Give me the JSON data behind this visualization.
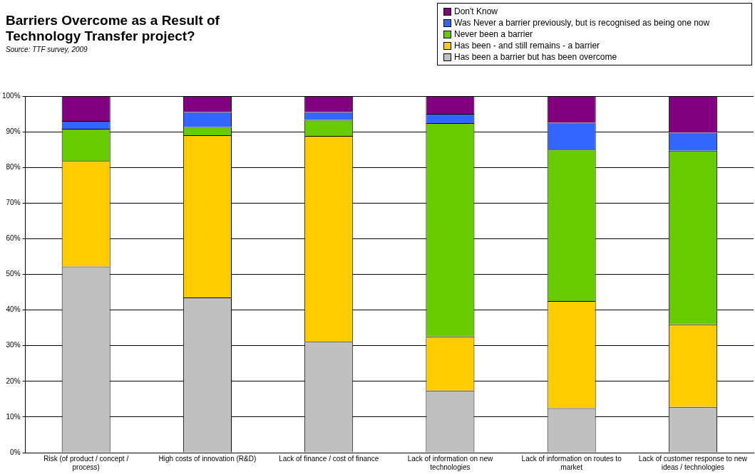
{
  "chart_data": {
    "type": "bar",
    "stacked": true,
    "title": "Barriers Overcome as a Result of Technology Transfer project?",
    "subtitle": "Source: TTF survey, 2009",
    "categories": [
      "Risk (of product / concept / process)",
      "High costs of innovation (R&D)",
      "Lack of finance / cost of finance",
      "Lack of information on new technologies",
      "Lack of information on routes to market",
      "Lack of customer response to new ideas / technologies"
    ],
    "series": [
      {
        "name": "Has been a barrier but has been overcome",
        "color": "#c0c0c0",
        "values": [
          52.2,
          43.5,
          31.1,
          17.4,
          12.5,
          12.8
        ]
      },
      {
        "name": "Has been - and still remains - a barrier",
        "color": "#ffcc00",
        "values": [
          29.6,
          45.5,
          57.7,
          15.2,
          30,
          23.2
        ]
      },
      {
        "name": "Never been a barrier",
        "color": "#66cc00",
        "values": [
          9,
          2.3,
          4.5,
          59.8,
          42.5,
          48.7
        ]
      },
      {
        "name": "Was Never a barrier previously, but is recognised as being one now",
        "color": "#3366ff",
        "values": [
          2.2,
          4.2,
          2.2,
          2.6,
          7.5,
          5
        ]
      },
      {
        "name": "Don't Know",
        "color": "#800080",
        "values": [
          7,
          4.5,
          4.5,
          5,
          7.5,
          10.3
        ]
      }
    ],
    "ylim": [
      0,
      100
    ],
    "yticks": [
      {
        "value": 0,
        "label": "0%"
      },
      {
        "value": 10,
        "label": "10%"
      },
      {
        "value": 20,
        "label": "20%"
      },
      {
        "value": 30,
        "label": "30%"
      },
      {
        "value": 40,
        "label": "40%"
      },
      {
        "value": 50,
        "label": "50%"
      },
      {
        "value": 60,
        "label": "60%"
      },
      {
        "value": 70,
        "label": "70%"
      },
      {
        "value": 80,
        "label": "80%"
      },
      {
        "value": 90,
        "label": "90%"
      },
      {
        "value": 100,
        "label": "100%"
      }
    ],
    "grid": "y",
    "legend": "top right"
  }
}
